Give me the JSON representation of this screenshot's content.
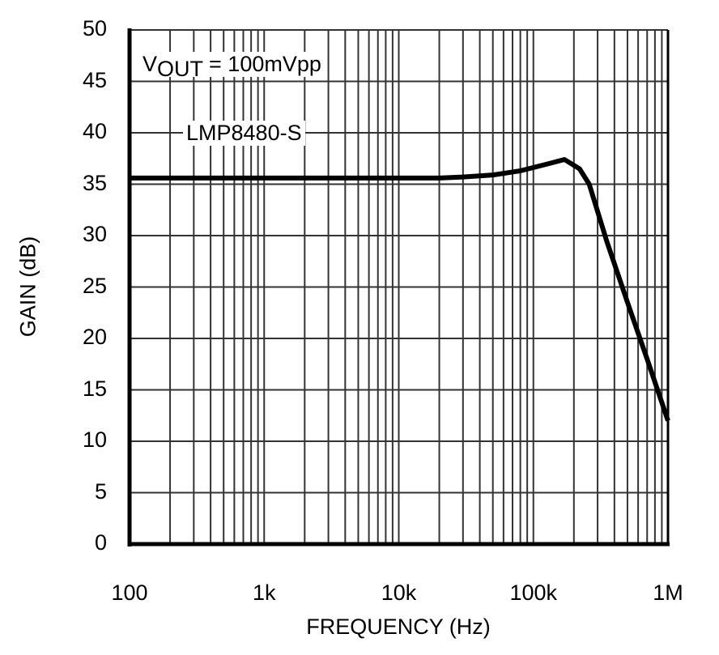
{
  "chart_data": {
    "type": "line",
    "title": "",
    "xlabel": "FREQUENCY (Hz)",
    "ylabel": "GAIN (dB)",
    "xscale": "log",
    "xlim": [
      100,
      1000000
    ],
    "ylim": [
      0,
      50
    ],
    "x_tick_labels": [
      "100",
      "1k",
      "10k",
      "100k",
      "1M"
    ],
    "x_tick_values": [
      100,
      1000,
      10000,
      100000,
      1000000
    ],
    "y_tick_labels": [
      "0",
      "5",
      "10",
      "15",
      "20",
      "25",
      "30",
      "35",
      "40",
      "45",
      "50"
    ],
    "y_tick_values": [
      0,
      5,
      10,
      15,
      20,
      25,
      30,
      35,
      40,
      45,
      50
    ],
    "grid": true,
    "legend": null,
    "annotations": [
      {
        "text_main": "V",
        "text_sub": "OUT",
        "text_rest": " = 100mVpp"
      },
      {
        "text": "LMP8480-S"
      }
    ],
    "series": [
      {
        "name": "LMP8480-S",
        "x": [
          100,
          1000,
          10000,
          20000,
          30000,
          50000,
          80000,
          130000,
          170000,
          220000,
          260000,
          350000,
          500000,
          700000,
          1000000
        ],
        "y": [
          35.6,
          35.6,
          35.6,
          35.6,
          35.7,
          35.9,
          36.3,
          37.0,
          37.4,
          36.5,
          35.0,
          29.5,
          23.5,
          18.0,
          12.0
        ]
      }
    ]
  },
  "labels": {
    "x_axis": "FREQUENCY (Hz)",
    "y_axis": "GAIN (dB)",
    "annot_v": "V",
    "annot_sub": "OUT",
    "annot_rest": " = 100mVpp",
    "annot_part": "LMP8480-S"
  }
}
